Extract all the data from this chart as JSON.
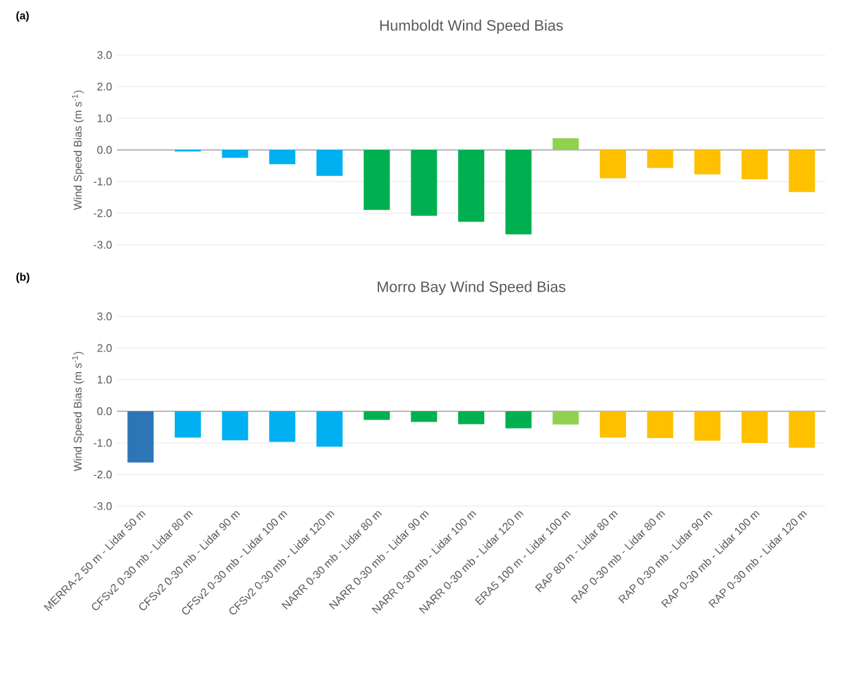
{
  "chart_data": [
    {
      "type": "bar",
      "title": "Humboldt Wind Speed Bias",
      "ylabel": "Wind Speed Bias (m s$^{-1}$)",
      "annotations": [
        "(a)"
      ],
      "categories": [
        null,
        null,
        null,
        null,
        null,
        null,
        null,
        null,
        null,
        null,
        null,
        null,
        null,
        null,
        null
      ],
      "values": [
        null,
        -0.05,
        -0.25,
        -0.45,
        -0.82,
        -1.9,
        -2.08,
        -2.27,
        -2.67,
        0.37,
        -0.9,
        -0.57,
        -0.77,
        -0.93,
        -1.33
      ],
      "colors": [
        "#2e75b6",
        "#00b0f0",
        "#00b0f0",
        "#00b0f0",
        "#00b0f0",
        "#00b050",
        "#00b050",
        "#00b050",
        "#00b050",
        "#92d050",
        "#ffc000",
        "#ffc000",
        "#ffc000",
        "#ffc000",
        "#ffc000"
      ],
      "ylim": [
        -3,
        3
      ],
      "yticks": [
        {
          "value": -3,
          "label": "-3.0"
        },
        {
          "value": -2,
          "label": "-2.0"
        },
        {
          "value": -1,
          "label": "-1.0"
        },
        {
          "value": 0,
          "label": "0.0"
        },
        {
          "value": 1,
          "label": "1.0"
        },
        {
          "value": 2,
          "label": "2.0"
        },
        {
          "value": 3,
          "label": "3.0"
        }
      ],
      "grid": "y",
      "tick_labels": "y"
    },
    {
      "type": "bar",
      "title": "Morro Bay Wind Speed Bias",
      "ylabel": "Wind Speed Bias (m s$^{-1}$)",
      "annotations": [
        "(b)"
      ],
      "categories": [
        "MERRA-2 50 m - Lidar 50 m",
        "CFSv2 0-30 mb - Lidar 80 m",
        "CFSv2 0-30 mb - Lidar 90 m",
        "CFSv2 0-30 mb - Lidar 100 m",
        "CFSv2 0-30 mb - Lidar 120 m",
        "NARR 0-30 mb - Lidar 80 m",
        "NARR 0-30 mb - Lidar 90 m",
        "NARR 0-30 mb - Lidar 100 m",
        "NARR 0-30 mb - Lidar 120 m",
        "ERA5 100 m - Lidar 100 m",
        "RAP 80 m - Lidar 80 m",
        "RAP 0-30 mb - Lidar 80 m",
        "RAP 0-30 mb - Lidar 90 m",
        "RAP 0-30 mb - Lidar 100 m",
        "RAP 0-30 mb - Lidar 120 m"
      ],
      "values": [
        -1.62,
        -0.83,
        -0.92,
        -0.97,
        -1.12,
        -0.27,
        -0.34,
        -0.41,
        -0.54,
        -0.42,
        -0.83,
        -0.85,
        -0.93,
        -1.0,
        -1.15
      ],
      "colors": [
        "#2e75b6",
        "#00b0f0",
        "#00b0f0",
        "#00b0f0",
        "#00b0f0",
        "#00b050",
        "#00b050",
        "#00b050",
        "#00b050",
        "#92d050",
        "#ffc000",
        "#ffc000",
        "#ffc000",
        "#ffc000",
        "#ffc000"
      ],
      "ylim": [
        -3,
        3
      ],
      "yticks": [
        {
          "value": -3,
          "label": "-3.0"
        },
        {
          "value": -2,
          "label": "-2.0"
        },
        {
          "value": -1,
          "label": "-1.0"
        },
        {
          "value": 0,
          "label": "0.0"
        },
        {
          "value": 1,
          "label": "1.0"
        },
        {
          "value": 2,
          "label": "2.0"
        },
        {
          "value": 3,
          "label": "3.0"
        }
      ],
      "grid": "y"
    }
  ]
}
